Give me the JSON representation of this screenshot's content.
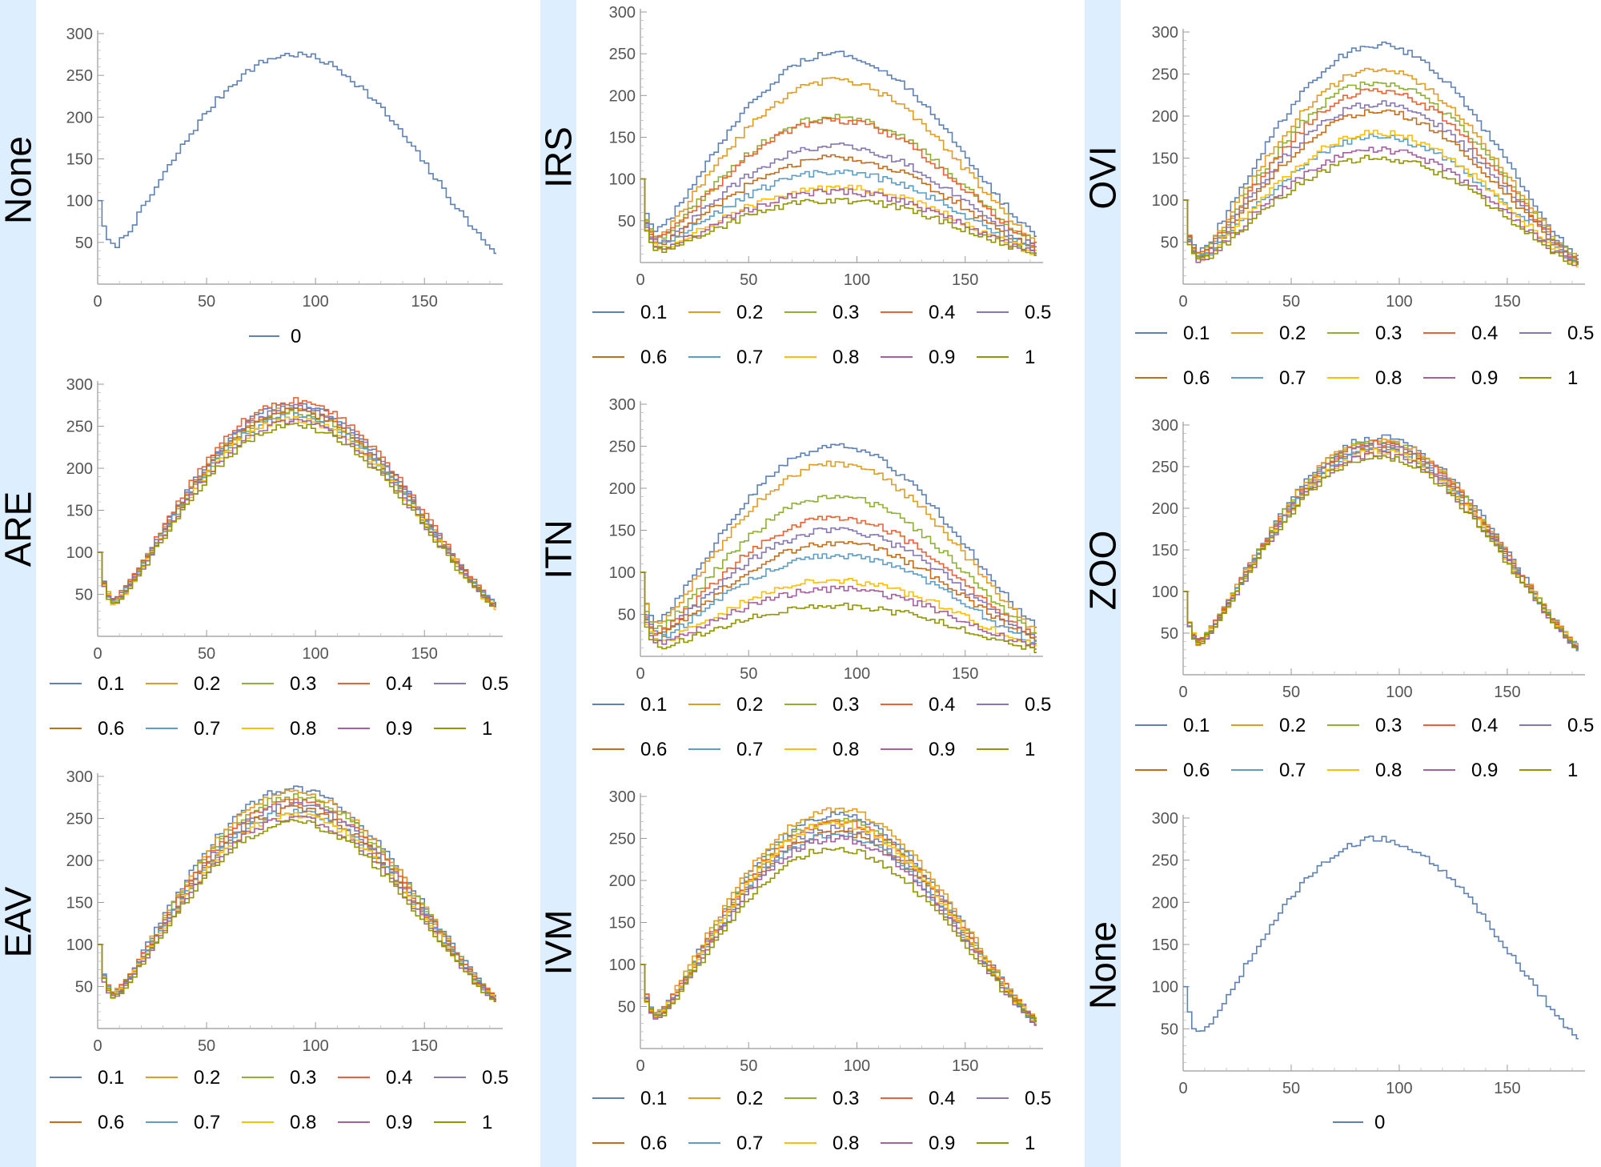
{
  "colors": [
    "#5E81B5",
    "#E19C24",
    "#8FB032",
    "#EB6235",
    "#8778B3",
    "#C56E1A",
    "#5D9EC7",
    "#FFBF00",
    "#A5609D",
    "#929600"
  ],
  "band_color": "#DDEEFF",
  "grid": false,
  "chart_data": [
    {
      "type": "line",
      "step": true,
      "row_label": "None",
      "xlim": [
        0,
        183
      ],
      "ylim": [
        0,
        300
      ],
      "xticks": [
        "0",
        "50",
        "100",
        "150"
      ],
      "yticks": [
        "50",
        "100",
        "150",
        "200",
        "250",
        "300"
      ],
      "legend": [
        "0"
      ],
      "series": [
        {
          "name": "0",
          "peak": 275,
          "base": 38
        }
      ]
    },
    {
      "type": "line",
      "step": true,
      "row_label": "ARE",
      "xlim": [
        0,
        183
      ],
      "ylim": [
        0,
        300
      ],
      "xticks": [
        "0",
        "50",
        "100",
        "150"
      ],
      "yticks": [
        "50",
        "100",
        "150",
        "200",
        "250",
        "300"
      ],
      "legend": [
        "0.1",
        "0.2",
        "0.3",
        "0.4",
        "0.5",
        "0.6",
        "0.7",
        "0.8",
        "0.9",
        "1"
      ],
      "series": [
        {
          "name": "0.1",
          "peak": 275,
          "base": 35
        },
        {
          "name": "0.2",
          "peak": 270,
          "base": 35
        },
        {
          "name": "0.3",
          "peak": 265,
          "base": 34
        },
        {
          "name": "0.4",
          "peak": 280,
          "base": 36
        },
        {
          "name": "0.5",
          "peak": 272,
          "base": 33
        },
        {
          "name": "0.6",
          "peak": 268,
          "base": 34
        },
        {
          "name": "0.7",
          "peak": 262,
          "base": 35
        },
        {
          "name": "0.8",
          "peak": 258,
          "base": 33
        },
        {
          "name": "0.9",
          "peak": 255,
          "base": 34
        },
        {
          "name": "1",
          "peak": 250,
          "base": 33
        }
      ]
    },
    {
      "type": "line",
      "step": true,
      "row_label": "EAV",
      "xlim": [
        0,
        183
      ],
      "ylim": [
        0,
        300
      ],
      "xticks": [
        "0",
        "50",
        "100",
        "150"
      ],
      "yticks": [
        "50",
        "100",
        "150",
        "200",
        "250",
        "300"
      ],
      "legend": [
        "0.1",
        "0.2",
        "0.3",
        "0.4",
        "0.5",
        "0.6",
        "0.7",
        "0.8",
        "0.9",
        "1"
      ],
      "series": [
        {
          "name": "0.1",
          "peak": 285,
          "base": 35
        },
        {
          "name": "0.2",
          "peak": 280,
          "base": 34
        },
        {
          "name": "0.3",
          "peak": 276,
          "base": 33
        },
        {
          "name": "0.4",
          "peak": 270,
          "base": 34
        },
        {
          "name": "0.5",
          "peak": 266,
          "base": 32
        },
        {
          "name": "0.6",
          "peak": 262,
          "base": 33
        },
        {
          "name": "0.7",
          "peak": 258,
          "base": 33
        },
        {
          "name": "0.8",
          "peak": 254,
          "base": 32
        },
        {
          "name": "0.9",
          "peak": 250,
          "base": 31
        },
        {
          "name": "1",
          "peak": 245,
          "base": 31
        }
      ]
    },
    {
      "type": "line",
      "step": true,
      "row_label": "IRS",
      "xlim": [
        0,
        183
      ],
      "ylim": [
        0,
        300
      ],
      "xticks": [
        "0",
        "50",
        "100",
        "150"
      ],
      "yticks": [
        "50",
        "100",
        "150",
        "200",
        "250",
        "300"
      ],
      "legend": [
        "0.1",
        "0.2",
        "0.3",
        "0.4",
        "0.5",
        "0.6",
        "0.7",
        "0.8",
        "0.9",
        "1"
      ],
      "series": [
        {
          "name": "0.1",
          "peak": 250,
          "base": 30
        },
        {
          "name": "0.2",
          "peak": 218,
          "base": 25
        },
        {
          "name": "0.3",
          "peak": 175,
          "base": 22
        },
        {
          "name": "0.4",
          "peak": 170,
          "base": 21
        },
        {
          "name": "0.5",
          "peak": 140,
          "base": 18
        },
        {
          "name": "0.6",
          "peak": 125,
          "base": 16
        },
        {
          "name": "0.7",
          "peak": 108,
          "base": 14
        },
        {
          "name": "0.8",
          "peak": 90,
          "base": 12
        },
        {
          "name": "0.9",
          "peak": 85,
          "base": 11
        },
        {
          "name": "1",
          "peak": 75,
          "base": 10
        }
      ]
    },
    {
      "type": "line",
      "step": true,
      "row_label": "ITN",
      "xlim": [
        0,
        183
      ],
      "ylim": [
        0,
        300
      ],
      "xticks": [
        "0",
        "50",
        "100",
        "150"
      ],
      "yticks": [
        "50",
        "100",
        "150",
        "200",
        "250",
        "300"
      ],
      "legend": [
        "0.1",
        "0.2",
        "0.3",
        "0.4",
        "0.5",
        "0.6",
        "0.7",
        "0.8",
        "0.9",
        "1"
      ],
      "series": [
        {
          "name": "0.1",
          "peak": 250,
          "base": 35
        },
        {
          "name": "0.2",
          "peak": 230,
          "base": 30
        },
        {
          "name": "0.3",
          "peak": 190,
          "base": 25
        },
        {
          "name": "0.4",
          "peak": 165,
          "base": 22
        },
        {
          "name": "0.5",
          "peak": 150,
          "base": 20
        },
        {
          "name": "0.6",
          "peak": 135,
          "base": 18
        },
        {
          "name": "0.7",
          "peak": 120,
          "base": 15
        },
        {
          "name": "0.8",
          "peak": 90,
          "base": 12
        },
        {
          "name": "0.9",
          "peak": 80,
          "base": 10
        },
        {
          "name": "1",
          "peak": 60,
          "base": 8
        }
      ]
    },
    {
      "type": "line",
      "step": true,
      "row_label": "IVM",
      "xlim": [
        0,
        183
      ],
      "ylim": [
        0,
        300
      ],
      "xticks": [
        "0",
        "50",
        "100",
        "150"
      ],
      "yticks": [
        "50",
        "100",
        "150",
        "200",
        "250",
        "300"
      ],
      "legend": [
        "0.1",
        "0.2",
        "0.3",
        "0.4",
        "0.5",
        "0.6",
        "0.7",
        "0.8",
        "0.9",
        "1"
      ],
      "series": [
        {
          "name": "0.1",
          "peak": 278,
          "base": 34
        },
        {
          "name": "0.2",
          "peak": 285,
          "base": 33
        },
        {
          "name": "0.3",
          "peak": 272,
          "base": 32
        },
        {
          "name": "0.4",
          "peak": 270,
          "base": 33
        },
        {
          "name": "0.5",
          "peak": 262,
          "base": 31
        },
        {
          "name": "0.6",
          "peak": 258,
          "base": 32
        },
        {
          "name": "0.7",
          "peak": 255,
          "base": 31
        },
        {
          "name": "0.8",
          "peak": 268,
          "base": 30
        },
        {
          "name": "0.9",
          "peak": 250,
          "base": 30
        },
        {
          "name": "1",
          "peak": 238,
          "base": 30
        }
      ]
    },
    {
      "type": "line",
      "step": true,
      "row_label": "OVI",
      "xlim": [
        0,
        183
      ],
      "ylim": [
        0,
        300
      ],
      "xticks": [
        "0",
        "50",
        "100",
        "150"
      ],
      "yticks": [
        "50",
        "100",
        "150",
        "200",
        "250",
        "300"
      ],
      "legend": [
        "0.1",
        "0.2",
        "0.3",
        "0.4",
        "0.5",
        "0.6",
        "0.7",
        "0.8",
        "0.9",
        "1"
      ],
      "series": [
        {
          "name": "0.1",
          "peak": 285,
          "base": 30
        },
        {
          "name": "0.2",
          "peak": 255,
          "base": 28
        },
        {
          "name": "0.3",
          "peak": 240,
          "base": 27
        },
        {
          "name": "0.4",
          "peak": 230,
          "base": 27
        },
        {
          "name": "0.5",
          "peak": 215,
          "base": 26
        },
        {
          "name": "0.6",
          "peak": 205,
          "base": 25
        },
        {
          "name": "0.7",
          "peak": 175,
          "base": 24
        },
        {
          "name": "0.8",
          "peak": 180,
          "base": 23
        },
        {
          "name": "0.9",
          "peak": 160,
          "base": 22
        },
        {
          "name": "1",
          "peak": 150,
          "base": 22
        }
      ]
    },
    {
      "type": "line",
      "step": true,
      "row_label": "ZOO",
      "xlim": [
        0,
        183
      ],
      "ylim": [
        0,
        300
      ],
      "xticks": [
        "0",
        "50",
        "100",
        "150"
      ],
      "yticks": [
        "50",
        "100",
        "150",
        "200",
        "250",
        "300"
      ],
      "legend": [
        "0.1",
        "0.2",
        "0.3",
        "0.4",
        "0.5",
        "0.6",
        "0.7",
        "0.8",
        "0.9",
        "1"
      ],
      "series": [
        {
          "name": "0.1",
          "peak": 285,
          "base": 33
        },
        {
          "name": "0.2",
          "peak": 282,
          "base": 33
        },
        {
          "name": "0.3",
          "peak": 280,
          "base": 32
        },
        {
          "name": "0.4",
          "peak": 278,
          "base": 33
        },
        {
          "name": "0.5",
          "peak": 275,
          "base": 32
        },
        {
          "name": "0.6",
          "peak": 272,
          "base": 32
        },
        {
          "name": "0.7",
          "peak": 270,
          "base": 31
        },
        {
          "name": "0.8",
          "peak": 268,
          "base": 32
        },
        {
          "name": "0.9",
          "peak": 265,
          "base": 31
        },
        {
          "name": "1",
          "peak": 262,
          "base": 31
        }
      ]
    },
    {
      "type": "line",
      "step": true,
      "row_label": "None",
      "xlim": [
        0,
        183
      ],
      "ylim": [
        0,
        300
      ],
      "xticks": [
        "0",
        "50",
        "100",
        "150"
      ],
      "yticks": [
        "50",
        "100",
        "150",
        "200",
        "250",
        "300"
      ],
      "legend": [
        "0"
      ],
      "series": [
        {
          "name": "0",
          "peak": 275,
          "base": 38
        }
      ]
    }
  ]
}
